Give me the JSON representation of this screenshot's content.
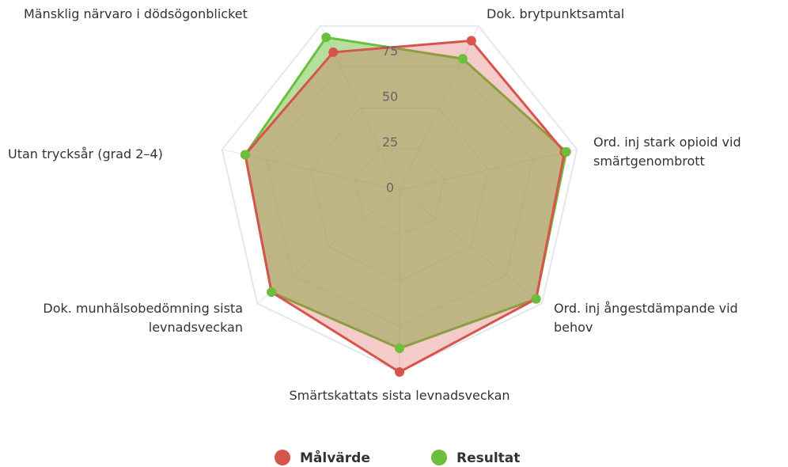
{
  "chart_data": {
    "type": "radar",
    "categories": [
      "Mänsklig närvaro i dödsögonblicket",
      "Dok. brytpunktsamtal",
      "Ord. inj stark opioid vid smärtgenombrott",
      "Ord. inj ångestdämpande vid behov",
      "Smärtskattats sista levnadsveckan",
      "Dok. munhälsobedömning sista levnadsveckan",
      "Utan trycksår (grad 2–4)"
    ],
    "series": [
      {
        "name": "Målvärde",
        "color": "#d6544c",
        "values": [
          84,
          91,
          93,
          96,
          100,
          90,
          87
        ]
      },
      {
        "name": "Resultat",
        "color": "#6cbf3c",
        "values": [
          93,
          80,
          94,
          96,
          87,
          90,
          87
        ]
      }
    ],
    "ylim": [
      0,
      100
    ],
    "yticks": [
      0,
      25,
      50,
      75
    ],
    "grid": true,
    "legend": "bottom"
  }
}
